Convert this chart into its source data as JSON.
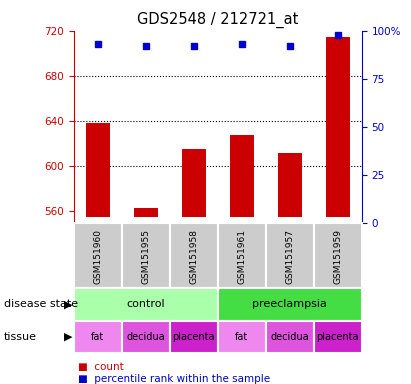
{
  "title": "GDS2548 / 212721_at",
  "samples": [
    "GSM151960",
    "GSM151955",
    "GSM151958",
    "GSM151961",
    "GSM151957",
    "GSM151959"
  ],
  "count_values": [
    638,
    563,
    615,
    628,
    612,
    714
  ],
  "percentile_values": [
    93,
    92,
    92,
    93,
    92,
    98
  ],
  "ylim_left": [
    550,
    720
  ],
  "ylim_right": [
    0,
    100
  ],
  "yticks_left": [
    560,
    600,
    640,
    680,
    720
  ],
  "yticks_right": [
    0,
    25,
    50,
    75,
    100
  ],
  "bar_color": "#cc0000",
  "dot_color": "#0000cc",
  "bar_base": 555,
  "disease_state": [
    {
      "label": "control",
      "span": [
        0,
        3
      ],
      "color": "#aaffaa"
    },
    {
      "label": "preeclampsia",
      "span": [
        3,
        6
      ],
      "color": "#44dd44"
    }
  ],
  "tissue": [
    {
      "label": "fat",
      "span": [
        0,
        1
      ],
      "color": "#ee88ee"
    },
    {
      "label": "decidua",
      "span": [
        1,
        2
      ],
      "color": "#dd55dd"
    },
    {
      "label": "placenta",
      "span": [
        2,
        3
      ],
      "color": "#cc22cc"
    },
    {
      "label": "fat",
      "span": [
        3,
        4
      ],
      "color": "#ee88ee"
    },
    {
      "label": "decidua",
      "span": [
        4,
        5
      ],
      "color": "#dd55dd"
    },
    {
      "label": "placenta",
      "span": [
        5,
        6
      ],
      "color": "#cc22cc"
    }
  ],
  "grid_values": [
    600,
    640,
    680
  ],
  "left_axis_color": "#cc0000",
  "right_axis_color": "#0000cc",
  "sample_box_color": "#cccccc",
  "sample_box_edgecolor": "white"
}
